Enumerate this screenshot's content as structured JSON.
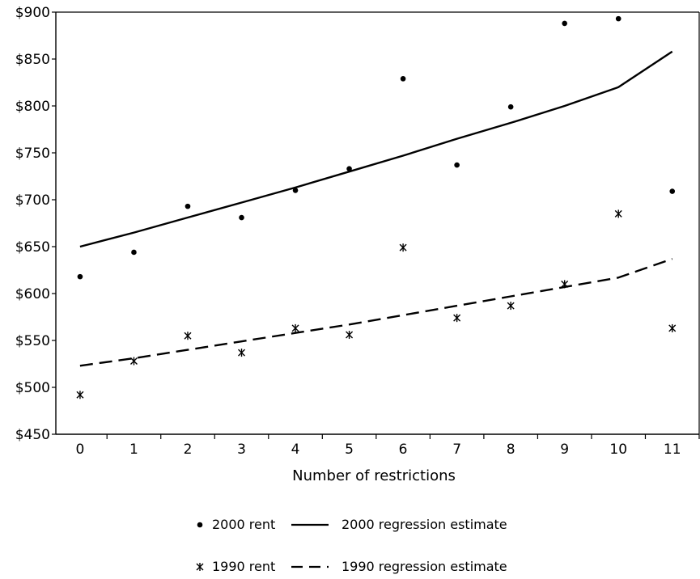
{
  "chart_data": {
    "type": "scatter",
    "xlabel": "Number of restrictions",
    "ylabel": "",
    "x": [
      0,
      1,
      2,
      3,
      4,
      5,
      6,
      7,
      8,
      9,
      10,
      11
    ],
    "xlim": [
      -0.45,
      11.5
    ],
    "ylim": [
      450,
      900
    ],
    "y_ticks": [
      450,
      500,
      550,
      600,
      650,
      700,
      750,
      800,
      850,
      900
    ],
    "y_tick_labels": [
      "$450",
      "$500",
      "$550",
      "$600",
      "$650",
      "$700",
      "$750",
      "$800",
      "$850",
      "$900"
    ],
    "x_tick_labels": [
      "0",
      "1",
      "2",
      "3",
      "4",
      "5",
      "6",
      "7",
      "8",
      "9",
      "10",
      "11"
    ],
    "grid": false,
    "legend_position": "bottom",
    "series": [
      {
        "name": "2000 rent",
        "kind": "points",
        "marker": "dot",
        "values": [
          618,
          644,
          693,
          681,
          710,
          733,
          829,
          737,
          799,
          888,
          893,
          709
        ]
      },
      {
        "name": "2000 regression estimate",
        "kind": "line",
        "style": "solid",
        "values": [
          650,
          665,
          681,
          697,
          713,
          730,
          747,
          765,
          782,
          800,
          820,
          858
        ]
      },
      {
        "name": "1990 rent",
        "kind": "points",
        "marker": "star",
        "values": [
          492,
          528,
          555,
          537,
          563,
          556,
          649,
          574,
          587,
          610,
          685,
          563
        ]
      },
      {
        "name": "1990 regression estimate",
        "kind": "line",
        "style": "dashed",
        "values": [
          523,
          531,
          540,
          549,
          558,
          567,
          577,
          587,
          597,
          607,
          617,
          637
        ]
      }
    ],
    "colors": {
      "ink": "#000000",
      "background": "#ffffff"
    }
  }
}
